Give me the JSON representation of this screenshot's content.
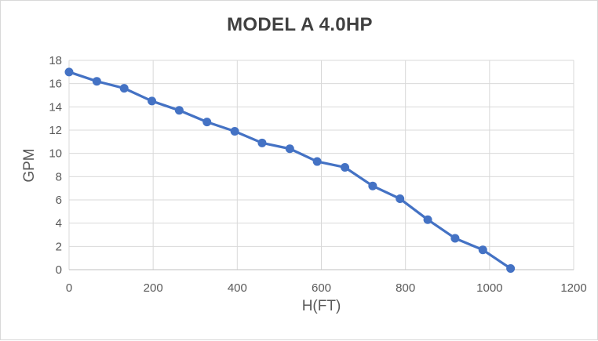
{
  "frame": {
    "background_color": "#ffffff",
    "border_color": "#d9d9d9"
  },
  "chart_data": {
    "type": "line",
    "title": "MODEL A 4.0HP",
    "xlabel": "H(FT)",
    "ylabel": "GPM",
    "series": [
      {
        "name": "MODEL A 4.0HP",
        "x": [
          0,
          66,
          131,
          197,
          262,
          328,
          394,
          459,
          525,
          590,
          656,
          722,
          787,
          853,
          918,
          984,
          1050
        ],
        "y": [
          17.0,
          16.2,
          15.6,
          14.5,
          13.7,
          12.7,
          11.9,
          10.9,
          10.4,
          9.3,
          8.8,
          7.2,
          6.1,
          4.3,
          2.7,
          1.7,
          0.1
        ]
      }
    ],
    "xlim": [
      0,
      1200
    ],
    "ylim": [
      0,
      18
    ],
    "x_ticks": [
      0,
      200,
      400,
      600,
      800,
      1000,
      1200
    ],
    "y_ticks": [
      0,
      2,
      4,
      6,
      8,
      10,
      12,
      14,
      16,
      18
    ],
    "grid": true,
    "legend": false,
    "series_color": "#4472C4",
    "gridline_color": "#D9D9D9",
    "axis_line_color": "#BFBFBF",
    "tick_label_color": "#595959",
    "title_color": "#404040",
    "axis_title_color": "#595959",
    "marker": "circle",
    "marker_radius": 5.5,
    "line_width": 3.25
  }
}
